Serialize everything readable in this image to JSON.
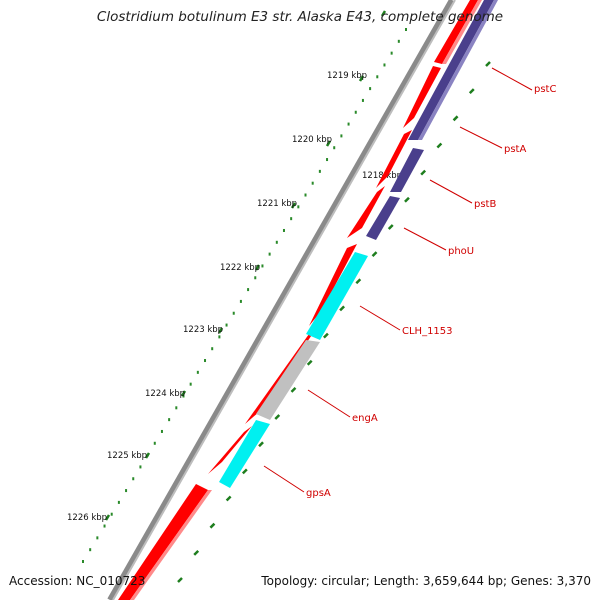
{
  "title": "Clostridium botulinum E3 str. Alaska E43, complete genome",
  "footer": {
    "accession": "Accession: NC_010723",
    "summary": "Topology: circular; Length: 3,659,644 bp; Genes: 3,370"
  },
  "colors": {
    "backbone": "#7a7a7a",
    "cds_forward": "#ff0000",
    "cds_reverse": "#ff0000",
    "cog_purple": "#4a3f8c",
    "cog_cyan": "#00f0f0",
    "cog_grey": "#c0c0c0",
    "tick": "#1e7e1e",
    "label": "#d00000"
  },
  "scale_ticks": [
    {
      "label": "1218 kbp"
    },
    {
      "label": "1219 kbp"
    },
    {
      "label": "1220 kbp"
    },
    {
      "label": "1221 kbp"
    },
    {
      "label": "1222 kbp"
    },
    {
      "label": "1223 kbp"
    },
    {
      "label": "1224 kbp"
    },
    {
      "label": "1225 kbp"
    },
    {
      "label": "1226 kbp"
    }
  ],
  "genes": [
    {
      "name": "pstC",
      "cog": "purple"
    },
    {
      "name": "pstA",
      "cog": "purple"
    },
    {
      "name": "pstB",
      "cog": "purple"
    },
    {
      "name": "phoU",
      "cog": "purple"
    },
    {
      "name": "CLH_1153",
      "cog": "cyan"
    },
    {
      "name": "engA",
      "cog": "grey"
    },
    {
      "name": "gpsA",
      "cog": "cyan"
    }
  ]
}
